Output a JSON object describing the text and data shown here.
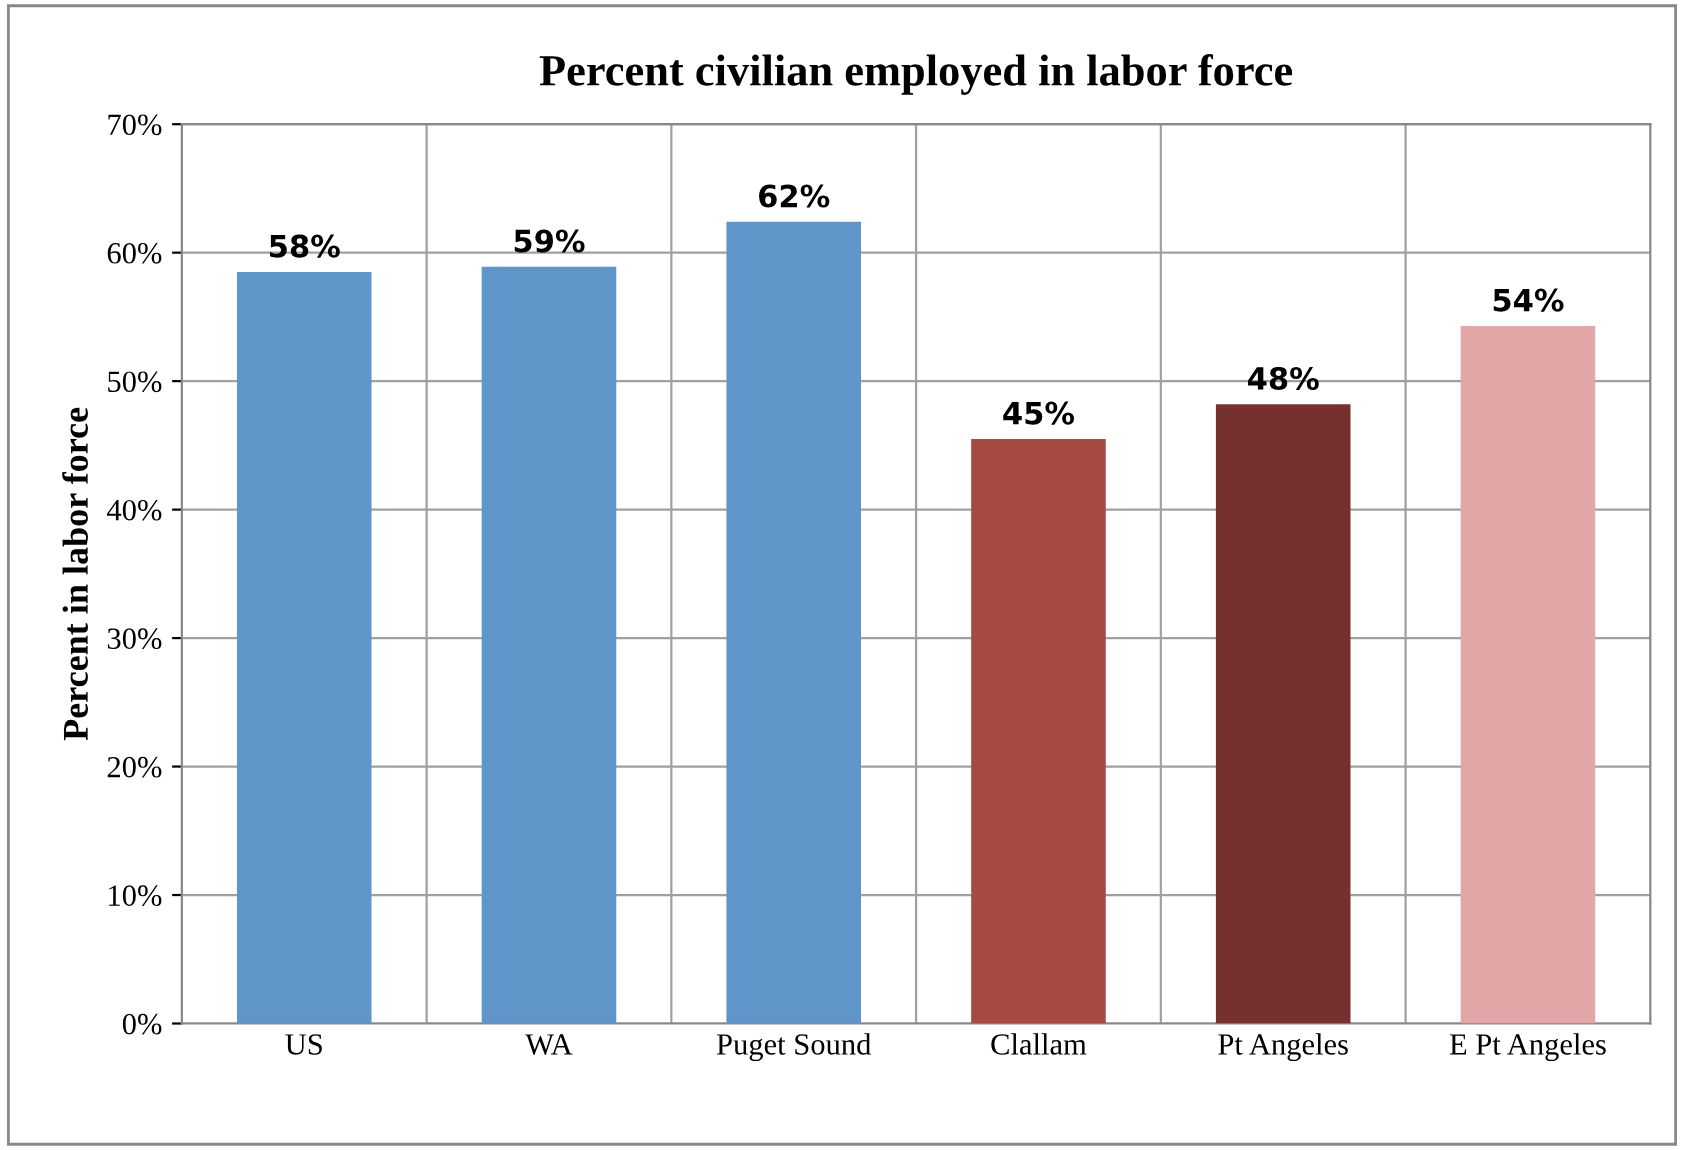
{
  "chart_data": {
    "type": "bar",
    "title": "Percent civilian employed in labor force",
    "ylabel": "Percent in labor force",
    "categories": [
      "US",
      "WA",
      "Puget Sound",
      "Clallam",
      "Pt Angeles",
      "E Pt Angeles"
    ],
    "values": [
      58.5,
      58.9,
      62.4,
      45.5,
      48.2,
      54.3
    ],
    "colors": [
      "#5f95c9",
      "#5f95c9",
      "#5f95c9",
      "#a64b44",
      "#76302e",
      "#e1a6a5"
    ],
    "value_labels": [
      "58%",
      "59%",
      "62%",
      "45%",
      "48%",
      "54%"
    ],
    "ylim": [
      0,
      70
    ],
    "yticks": [
      {
        "value": 0,
        "label": "0%"
      },
      {
        "value": 10,
        "label": "10%"
      },
      {
        "value": 20,
        "label": "20%"
      },
      {
        "value": 30,
        "label": "30%"
      },
      {
        "value": 40,
        "label": "40%"
      },
      {
        "value": 50,
        "label": "50%"
      },
      {
        "value": 60,
        "label": "60%"
      },
      {
        "value": 70,
        "label": "70%"
      }
    ],
    "grid": true,
    "legend": false
  }
}
